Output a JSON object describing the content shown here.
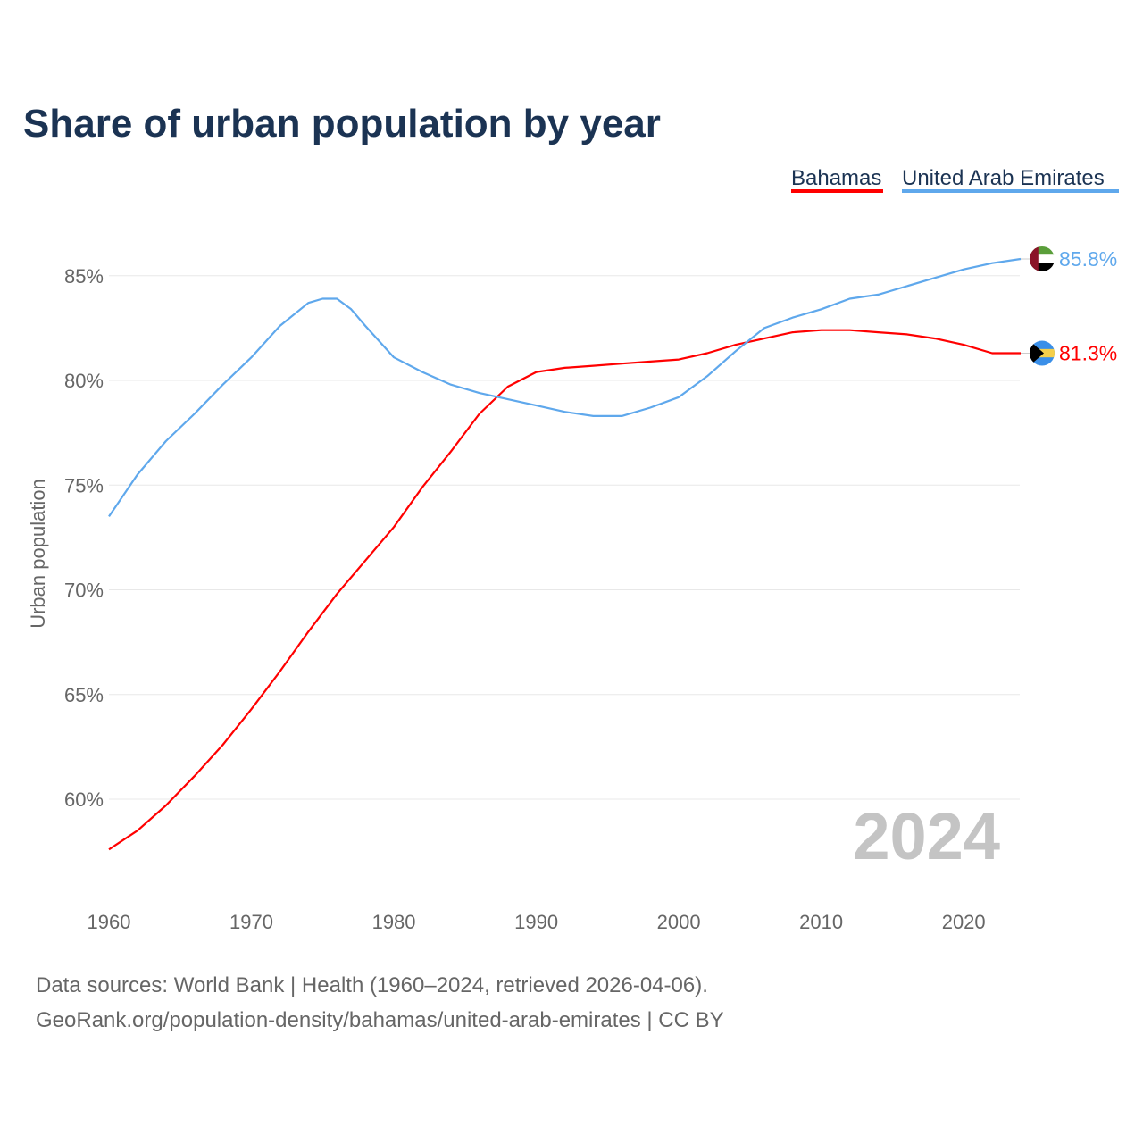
{
  "chart_data": {
    "type": "line",
    "title": "Share of urban population by year",
    "xlabel": "",
    "ylabel": "Urban population",
    "xlim": [
      1960,
      2024
    ],
    "ylim": [
      57,
      87
    ],
    "grid": true,
    "legend_position": "top-right",
    "x_ticks": [
      "1960",
      "1970",
      "1980",
      "1990",
      "2000",
      "2010",
      "2020"
    ],
    "y_ticks": [
      "60%",
      "65%",
      "70%",
      "75%",
      "80%",
      "85%"
    ],
    "year_watermark": "2024",
    "series": [
      {
        "name": "Bahamas",
        "color": "#ff0000",
        "end_label": "81.3%",
        "flag": "bahamas-flag",
        "x": [
          1960,
          1962,
          1964,
          1966,
          1968,
          1970,
          1972,
          1974,
          1976,
          1978,
          1980,
          1982,
          1984,
          1986,
          1988,
          1990,
          1992,
          1994,
          1996,
          1998,
          2000,
          2002,
          2004,
          2006,
          2008,
          2010,
          2012,
          2014,
          2016,
          2018,
          2020,
          2022,
          2024
        ],
        "values": [
          57.6,
          58.5,
          59.7,
          61.1,
          62.6,
          64.3,
          66.1,
          68.0,
          69.8,
          71.4,
          73.0,
          74.9,
          76.6,
          78.4,
          79.7,
          80.4,
          80.6,
          80.7,
          80.8,
          80.9,
          81.0,
          81.3,
          81.7,
          82.0,
          82.3,
          82.4,
          82.4,
          82.3,
          82.2,
          82.0,
          81.7,
          81.3,
          81.3
        ]
      },
      {
        "name": "United Arab Emirates",
        "color": "#5fa8ec",
        "end_label": "85.8%",
        "flag": "uae-flag",
        "x": [
          1960,
          1962,
          1964,
          1966,
          1968,
          1970,
          1972,
          1974,
          1975,
          1976,
          1977,
          1978,
          1980,
          1982,
          1984,
          1986,
          1988,
          1990,
          1992,
          1994,
          1996,
          1998,
          2000,
          2002,
          2004,
          2006,
          2008,
          2010,
          2012,
          2014,
          2016,
          2018,
          2020,
          2022,
          2024
        ],
        "values": [
          73.5,
          75.5,
          77.1,
          78.4,
          79.8,
          81.1,
          82.6,
          83.7,
          83.9,
          83.9,
          83.4,
          82.6,
          81.1,
          80.4,
          79.8,
          79.4,
          79.1,
          78.8,
          78.5,
          78.3,
          78.3,
          78.7,
          79.2,
          80.2,
          81.4,
          82.5,
          83.0,
          83.4,
          83.9,
          84.1,
          84.5,
          84.9,
          85.3,
          85.6,
          85.8
        ]
      }
    ]
  },
  "footer": {
    "line1": "Data sources: World Bank | Health (1960–2024, retrieved 2026-04-06).",
    "line2": "GeoRank.org/population-density/bahamas/united-arab-emirates | CC BY"
  }
}
